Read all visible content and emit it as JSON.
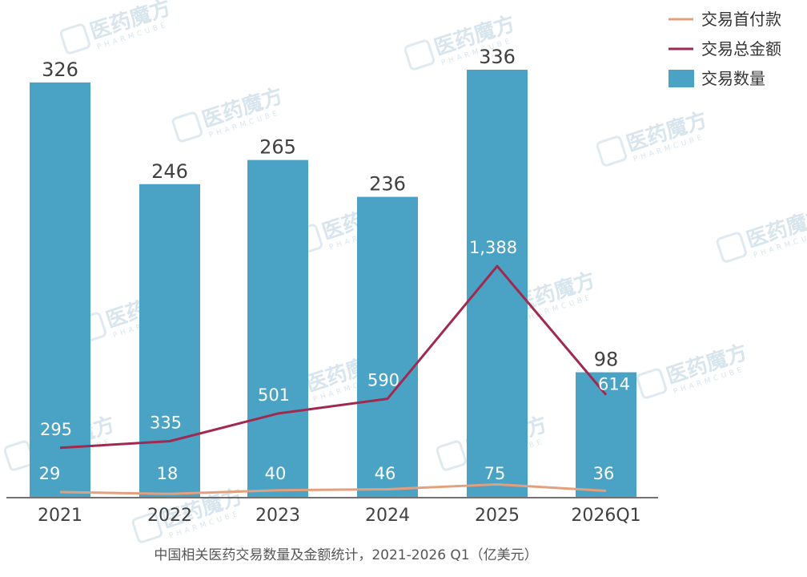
{
  "chart_data": {
    "type": "bar",
    "title": "",
    "caption": "中国相关医药交易数量及金额统计，2021-2026 Q1（亿美元）",
    "categories": [
      "2021",
      "2022",
      "2023",
      "2024",
      "2025",
      "2026Q1"
    ],
    "series": [
      {
        "name": "交易数量",
        "type": "bar",
        "values": [
          326,
          246,
          265,
          236,
          336,
          98
        ],
        "labels": [
          "326",
          "246",
          "265",
          "236",
          "336",
          "98"
        ],
        "color": "#4aa3c4"
      },
      {
        "name": "交易总金额",
        "type": "line",
        "values": [
          295,
          335,
          501,
          590,
          1388,
          614
        ],
        "labels": [
          "295",
          "335",
          "501",
          "590",
          "1,388",
          "614"
        ],
        "color": "#a02a4f"
      },
      {
        "name": "交易首付款",
        "type": "line",
        "values": [
          29,
          18,
          40,
          46,
          75,
          36
        ],
        "labels": [
          "29",
          "18",
          "40",
          "46",
          "75",
          "36"
        ],
        "color": "#e3a07e"
      }
    ],
    "legend": {
      "position": "top-right",
      "order": [
        "交易首付款",
        "交易总金额",
        "交易数量"
      ]
    },
    "bar_ylim": [
      0,
      336
    ],
    "line_ylim": [
      0,
      1388
    ],
    "grid": false
  },
  "watermark": {
    "text": "医药魔方",
    "sub": "PHARMCUBE"
  }
}
